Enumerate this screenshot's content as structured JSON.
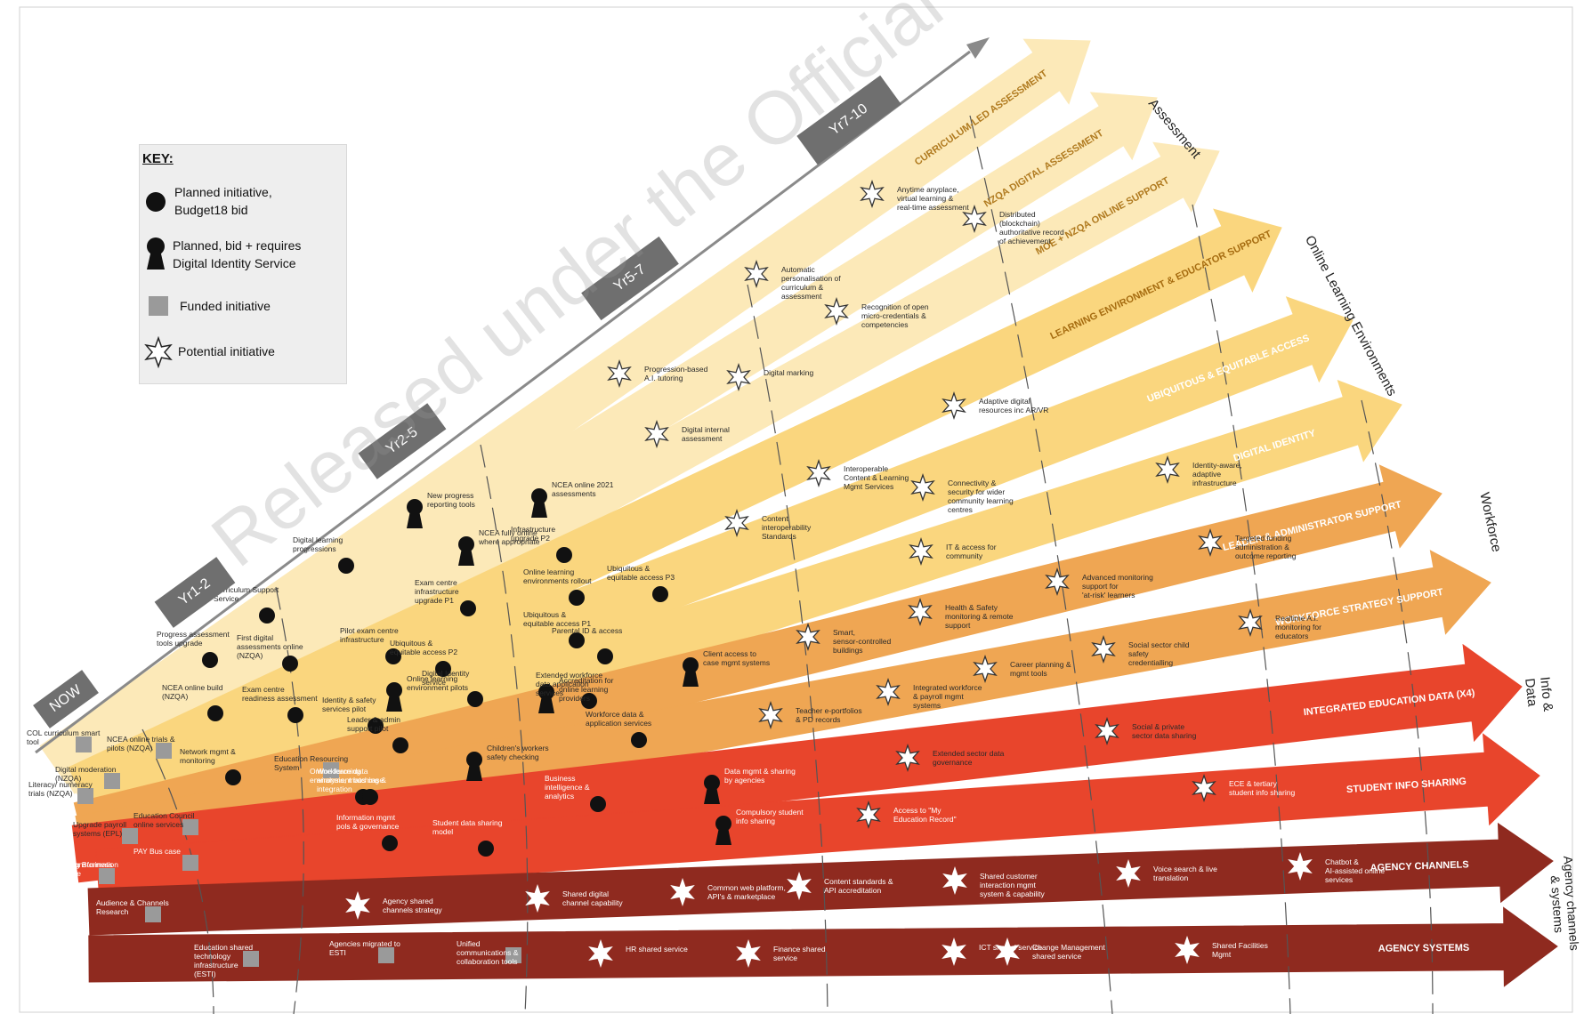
{
  "key": {
    "title": "KEY:",
    "items": [
      {
        "label": "Planned initiative,\nBudget18 bid",
        "icon": "planned-dot-icon"
      },
      {
        "label": "Planned, bid + requires\nDigital Identity Service",
        "icon": "keyhole-icon"
      },
      {
        "label": "Funded initiative",
        "icon": "funded-square-icon"
      },
      {
        "label": "Potential initiative",
        "icon": "potential-star-icon"
      }
    ]
  },
  "phases": [
    "NOW",
    "Yr1-2",
    "Yr2-5",
    "Yr5-7",
    "Yr7-10"
  ],
  "categories": [
    "Assessment",
    "Online Learning Environments",
    "Workforce",
    "Info & Data",
    "Agency channels & systems"
  ],
  "arrows": [
    "CURRICULUM-LED ASSESSMENT",
    "NZQA DIGITAL ASSESSMENT",
    "MOE + NZQA ONLINE SUPPORT",
    "LEARNING ENVIRONMENT & EDUCATOR SUPPORT",
    "UBIQUITOUS & EQUITABLE ACCESS",
    "DIGITAL IDENTITY",
    "LEADER & ADMINISTRATOR SUPPORT",
    "WORKFORCE STRATEGY SUPPORT",
    "INTEGRATED EDUCATION DATA (X4)",
    "STUDENT INFO SHARING",
    "AGENCY CHANNELS",
    "AGENCY SYSTEMS"
  ],
  "initiatives": [
    {
      "label": "Anytime anyplace, virtual learning & real-time assessment",
      "kind": "star"
    },
    {
      "label": "Distributed (blockchain) authoritative record of achievement",
      "kind": "star"
    },
    {
      "label": "Automatic personalisation of curriculum & assessment",
      "kind": "star"
    },
    {
      "label": "Recognition of open micro-credentials & competencies",
      "kind": "star"
    },
    {
      "label": "Progression-based A.I. tutoring",
      "kind": "star"
    },
    {
      "label": "Digital marking",
      "kind": "star"
    },
    {
      "label": "Adaptive digital resources inc AR/VR",
      "kind": "star"
    },
    {
      "label": "Digital internal assessment",
      "kind": "star"
    },
    {
      "label": "Interoperable Content & Learning Mgmt Services",
      "kind": "star"
    },
    {
      "label": "Connectivity & security for wider community learning centres",
      "kind": "star"
    },
    {
      "label": "Identity-aware, adaptive infrastructure",
      "kind": "star"
    },
    {
      "label": "New progress reporting tools",
      "kind": "keyhole"
    },
    {
      "label": "NCEA online 2021 assessments",
      "kind": "keyhole"
    },
    {
      "label": "Content interoperability Standards",
      "kind": "star"
    },
    {
      "label": "Digital learning progressions",
      "kind": "dot"
    },
    {
      "label": "NCEA fully online where appropriate",
      "kind": "keyhole"
    },
    {
      "label": "Infrastructure upgrade P2",
      "kind": "dot"
    },
    {
      "label": "Targeted funding administration & outcome reporting",
      "kind": "star"
    },
    {
      "label": "IT & access for community",
      "kind": "star"
    },
    {
      "label": "Advanced monitoring support for 'at-risk' learners",
      "kind": "star"
    },
    {
      "label": "Curriculum Support Service",
      "kind": "dot"
    },
    {
      "label": "Exam centre infrastructure upgrade P1",
      "kind": "dot"
    },
    {
      "label": "Online learning environments rollout",
      "kind": "dot"
    },
    {
      "label": "Ubiquitous & equitable access P3",
      "kind": "dot"
    },
    {
      "label": "Health & Safety monitoring & remote support",
      "kind": "star"
    },
    {
      "label": "Realtime A.I. monitoring for educators",
      "kind": "star"
    },
    {
      "label": "Progress assessment tools upgrade",
      "kind": "dot"
    },
    {
      "label": "First digital assessments online (NZQA)",
      "kind": "dot"
    },
    {
      "label": "Pilot exam centre infrastructure",
      "kind": "dot"
    },
    {
      "label": "Ubiquitous & equitable access P2",
      "kind": "dot"
    },
    {
      "label": "Smart, sensor-controlled buildings",
      "kind": "star"
    },
    {
      "label": "Social sector child safety credentialling",
      "kind": "star"
    },
    {
      "label": "Ubiquitous & equitable access P1",
      "kind": "dot"
    },
    {
      "label": "Parental ID & access",
      "kind": "dot"
    },
    {
      "label": "Client access to case mgmt systems",
      "kind": "keyhole"
    },
    {
      "label": "Career planning & mgmt tools",
      "kind": "star"
    },
    {
      "label": "NCEA online build (NZQA)",
      "kind": "dot"
    },
    {
      "label": "Exam centre readiness assessment",
      "kind": "dot"
    },
    {
      "label": "Online learning environment pilots",
      "kind": "keyhole"
    },
    {
      "label": "Digital Identity service",
      "kind": "dot"
    },
    {
      "label": "Accreditation for online learning providers",
      "kind": "keyhole"
    },
    {
      "label": "Integrated workforce & payroll mgmt systems",
      "kind": "star"
    },
    {
      "label": "Extended workforce data application services",
      "kind": "dot"
    },
    {
      "label": "Teacher e-portfolios & PD records",
      "kind": "star"
    },
    {
      "label": "COL curriculum smart tool",
      "kind": "square"
    },
    {
      "label": "NCEA online trials & pilots (NZQA)",
      "kind": "square"
    },
    {
      "label": "Identity & safety services pilot",
      "kind": "dot"
    },
    {
      "label": "Leader & admin support pilot",
      "kind": "dot"
    },
    {
      "label": "Workforce data & application services",
      "kind": "dot"
    },
    {
      "label": "Social & private sector data sharing",
      "kind": "star"
    },
    {
      "label": "Network mgmt & monitoring",
      "kind": "dot"
    },
    {
      "label": "Literacy/ numeracy trials (NZQA)",
      "kind": "square"
    },
    {
      "label": "Digital moderation (NZQA)",
      "kind": "square"
    },
    {
      "label": "Online learning environment bus case",
      "kind": "dot"
    },
    {
      "label": "Education Resourcing System",
      "kind": "square"
    },
    {
      "label": "Children's workers safety checking",
      "kind": "keyhole"
    },
    {
      "label": "Extended sector data governance",
      "kind": "star"
    },
    {
      "label": "Workforce data analysis, matching & integration",
      "kind": "dot"
    },
    {
      "label": "Business intelligence & analytics",
      "kind": "dot"
    },
    {
      "label": "Data mgmt & sharing by agencies",
      "kind": "keyhole"
    },
    {
      "label": "ECE & tertiary student info sharing",
      "kind": "star"
    },
    {
      "label": "Upgrade payroll systems (EPL)",
      "kind": "square"
    },
    {
      "label": "Education Council online services",
      "kind": "square"
    },
    {
      "label": "Access to \"My Education Record\"",
      "kind": "star"
    },
    {
      "label": "Compulsory student info sharing",
      "kind": "keyhole"
    },
    {
      "label": "Information mgmt pols & governance",
      "kind": "dot"
    },
    {
      "label": "Student data sharing model",
      "kind": "dot"
    },
    {
      "label": "PAY Bus case",
      "kind": "square"
    },
    {
      "label": "Data Transformation Bus case",
      "kind": "square"
    },
    {
      "label": "IED prog Business case",
      "kind": "square"
    },
    {
      "label": "Agency shared channels strategy",
      "kind": "star"
    },
    {
      "label": "Shared digital channel capability",
      "kind": "star"
    },
    {
      "label": "Common web platform, API's & marketplace",
      "kind": "star"
    },
    {
      "label": "Content standards & API accreditation",
      "kind": "star"
    },
    {
      "label": "Shared customer interaction mgmt system & capability",
      "kind": "star"
    },
    {
      "label": "Voice search & live translation",
      "kind": "star"
    },
    {
      "label": "Chatbot & AI-assisted online services",
      "kind": "star"
    },
    {
      "label": "Audience & Channels Research",
      "kind": "square"
    },
    {
      "label": "Education shared technology infrastructure (ESTI)",
      "kind": "square"
    },
    {
      "label": "Agencies migrated to ESTI",
      "kind": "square"
    },
    {
      "label": "Unified communications & collaboration tools",
      "kind": "square"
    },
    {
      "label": "HR shared service",
      "kind": "star"
    },
    {
      "label": "Finance shared service",
      "kind": "star"
    },
    {
      "label": "ICT shared service",
      "kind": "star"
    },
    {
      "label": "Change Management shared service",
      "kind": "star"
    },
    {
      "label": "Shared Facilities Mgmt",
      "kind": "star"
    }
  ],
  "watermark": "Released under the Official Information Act",
  "colors": {
    "arrow_light": "#fce9b8",
    "arrow_yellow": "#fad67e",
    "arrow_orange": "#efa653",
    "arrow_red": "#e8452c",
    "arrow_maroon": "#8f2a1f",
    "phase_box": "#6f6f6f"
  }
}
